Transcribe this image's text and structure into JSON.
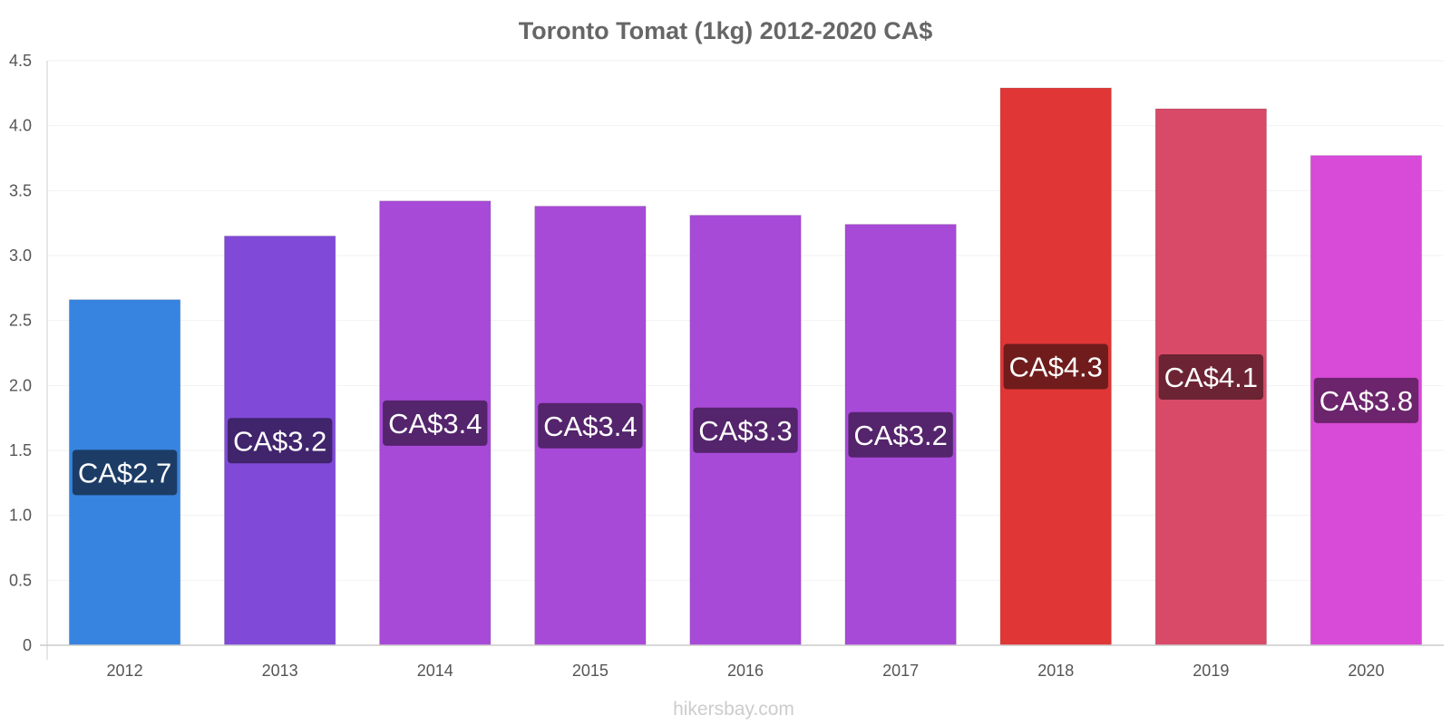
{
  "chart_data": {
    "type": "bar",
    "title": "Toronto Tomat (1kg) 2012-2020 CA$",
    "xlabel": "",
    "ylabel": "",
    "ylim": [
      0,
      4.5
    ],
    "yticks": [
      "0",
      "0.5",
      "1.0",
      "1.5",
      "2.0",
      "2.5",
      "3.0",
      "3.5",
      "4.0",
      "4.5"
    ],
    "grid": true,
    "legend": "none",
    "categories": [
      "2012",
      "2013",
      "2014",
      "2015",
      "2016",
      "2017",
      "2018",
      "2019",
      "2020"
    ],
    "values": [
      2.66,
      3.15,
      3.42,
      3.38,
      3.31,
      3.24,
      4.29,
      4.13,
      3.77
    ],
    "data_labels": [
      "CA$2.7",
      "CA$3.2",
      "CA$3.4",
      "CA$3.4",
      "CA$3.3",
      "CA$3.2",
      "CA$4.3",
      "CA$4.1",
      "CA$3.8"
    ],
    "bar_colors": [
      "#3684e0",
      "#8049d8",
      "#a84ad8",
      "#a84ad8",
      "#a84ad8",
      "#a84ad8",
      "#e03636",
      "#d84a68",
      "#d84ad8"
    ],
    "label_bg_colors": [
      "#1c3c66",
      "#40246c",
      "#54246c",
      "#54246c",
      "#54246c",
      "#54246c",
      "#701c1c",
      "#6c2434",
      "#6c246c"
    ]
  },
  "footer": {
    "watermark": "hikersbay.com"
  }
}
